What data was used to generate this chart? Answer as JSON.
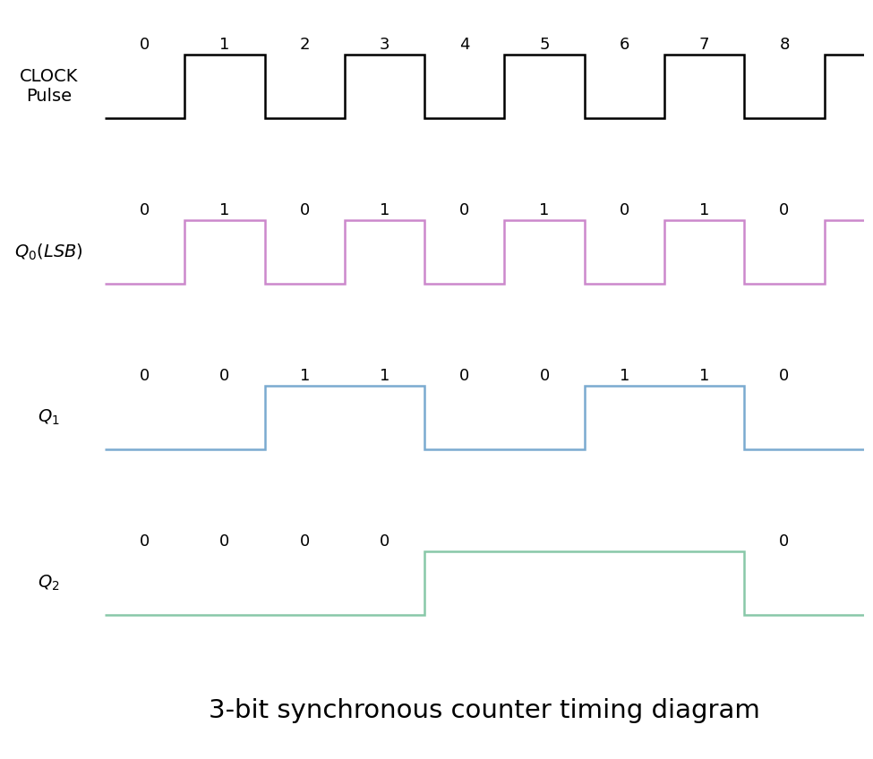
{
  "title": "3-bit synchronous counter timing diagram",
  "title_fontsize": 21,
  "background_color": "#ffffff",
  "signal_labels": [
    "CLOCK\nPulse",
    "$Q_0(LSB)$",
    "$Q_1$",
    "$Q_2$"
  ],
  "clock_color": "#000000",
  "q0_color": "#cc88cc",
  "q1_color": "#7aaad0",
  "q2_color": "#88c8a8",
  "pulse_labels": [
    "0",
    "1",
    "2",
    "3",
    "4",
    "5",
    "6",
    "7",
    "8"
  ],
  "q0_labels": [
    "0",
    "1",
    "0",
    "1",
    "0",
    "1",
    "0",
    "1",
    "0"
  ],
  "q1_labels": [
    "0",
    "0",
    "1",
    "1",
    "0",
    "0",
    "1",
    "1",
    "0"
  ],
  "q2_labels": [
    "0",
    "0",
    "0",
    "0",
    "",
    "",
    "",
    "",
    "0"
  ],
  "line_width": 1.8,
  "label_fontsize": 13,
  "signal_label_fontsize": 14,
  "total_half_periods": 9,
  "extra_partial": 0.5
}
